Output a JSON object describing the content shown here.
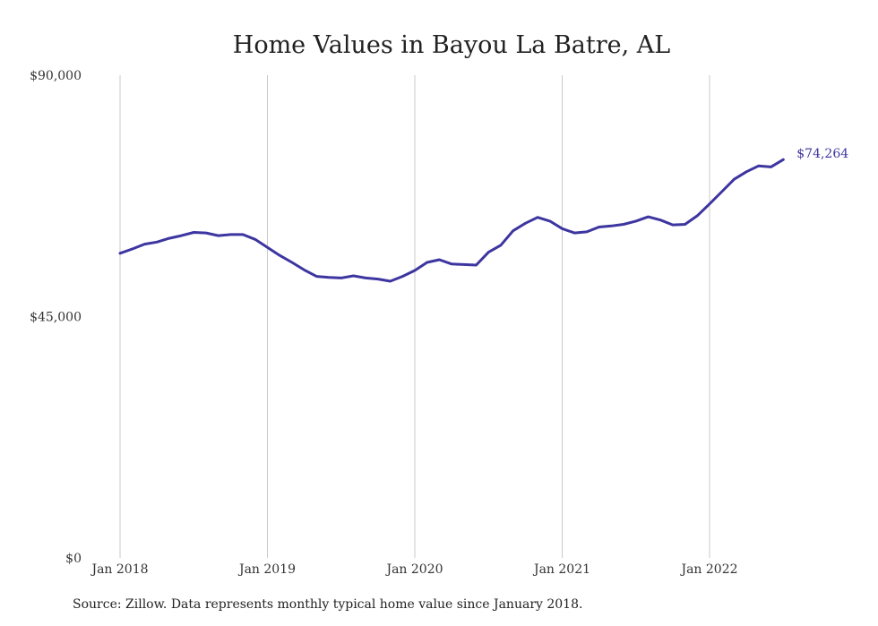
{
  "chart_data": {
    "type": "line",
    "title": "Home Values in Bayou La Batre, AL",
    "xlabel": "",
    "ylabel": "",
    "x_start": "2018-01",
    "x_ticks": [
      "Jan 2018",
      "Jan 2019",
      "Jan 2020",
      "Jan 2021",
      "Jan 2022"
    ],
    "y_ticks": [
      "$90,000",
      "$45,000",
      "$0"
    ],
    "y_tick_values": [
      90000,
      45000,
      0
    ],
    "ylim": [
      0,
      90000
    ],
    "grid": "vertical",
    "line_color": "#3d35a0",
    "end_label": "$74,264",
    "series": [
      {
        "values": [
          56800,
          57600,
          58500,
          58900,
          59600,
          60100,
          60700,
          60600,
          60100,
          60300,
          60300,
          59400,
          57900,
          56400,
          55100,
          53700,
          52500,
          52300,
          52200,
          52600,
          52200,
          52000,
          51600,
          52500,
          53600,
          55100,
          55600,
          54800,
          54700,
          54600,
          57000,
          58300,
          61000,
          62400,
          63500,
          62800,
          61400,
          60600,
          60800,
          61700,
          61900,
          62200,
          62800,
          63600,
          63000,
          62100,
          62200,
          63800,
          66000,
          68300,
          70600,
          72000,
          73100,
          72900,
          74264
        ]
      }
    ]
  },
  "footer": {
    "source": "Source: Zillow. Data represents monthly typical home value since January 2018."
  }
}
